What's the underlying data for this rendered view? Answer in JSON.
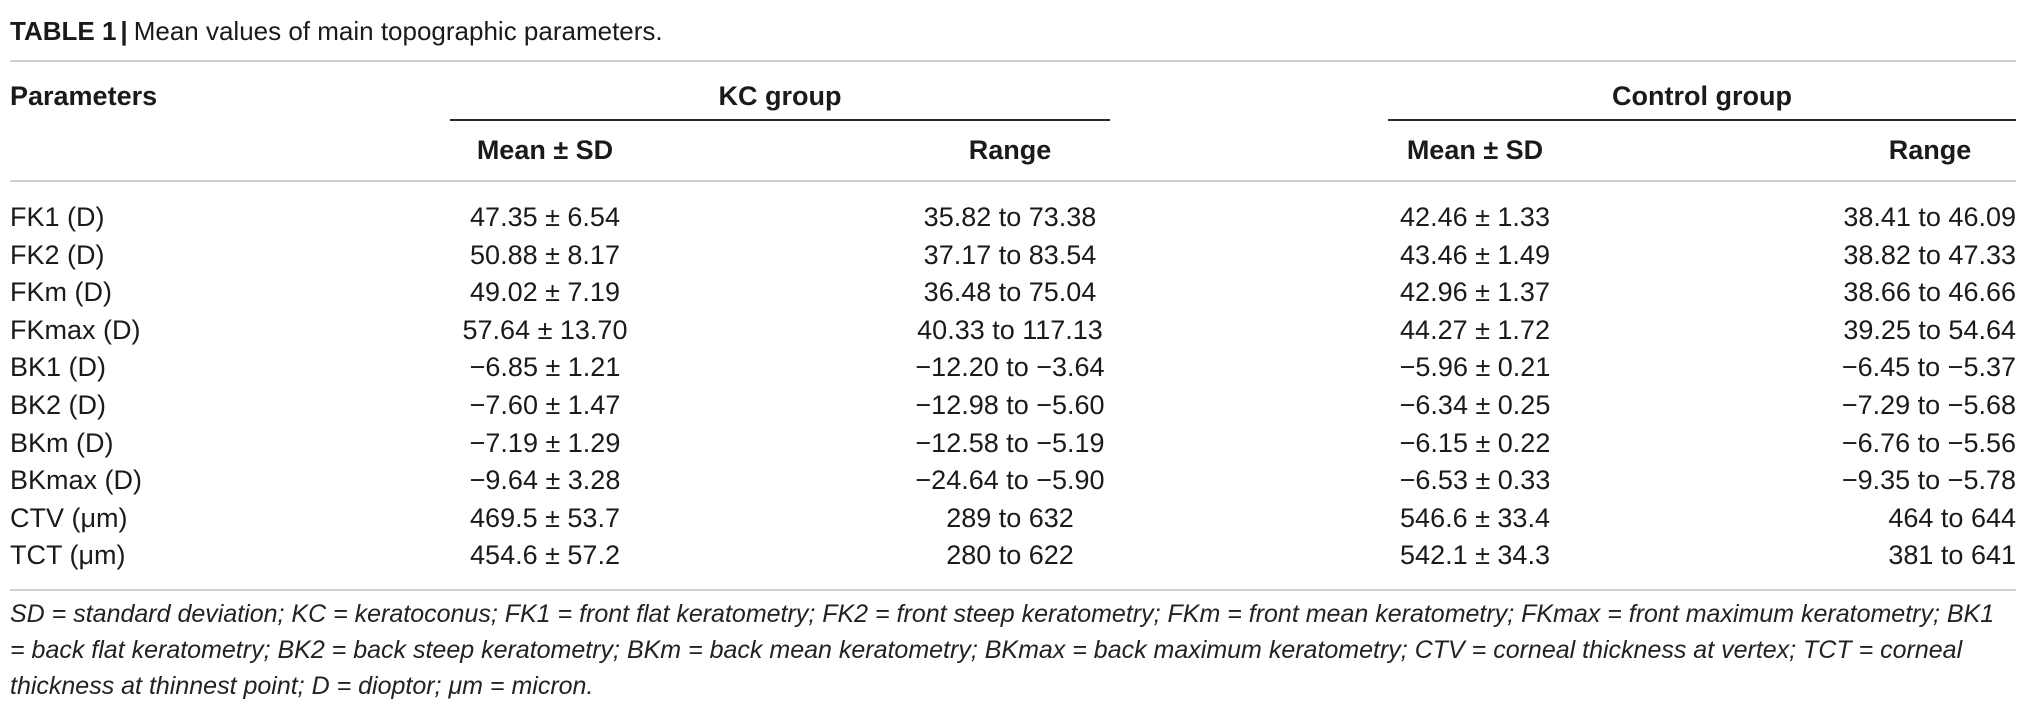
{
  "caption": {
    "label": "TABLE 1",
    "separator": "|",
    "text": "Mean values of main topographic parameters."
  },
  "header": {
    "parameters": "Parameters",
    "kc_group": "KC group",
    "control_group": "Control group",
    "kc_mean": "Mean ± SD",
    "kc_range": "Range",
    "ctrl_mean": "Mean ± SD",
    "ctrl_range": "Range"
  },
  "rows": [
    {
      "param": "FK1 (D)",
      "kc_mean": "47.35 ± 6.54",
      "kc_range": "35.82 to 73.38",
      "ctrl_mean": "42.46 ± 1.33",
      "ctrl_range": "38.41 to 46.09"
    },
    {
      "param": "FK2 (D)",
      "kc_mean": "50.88 ± 8.17",
      "kc_range": "37.17 to 83.54",
      "ctrl_mean": "43.46 ± 1.49",
      "ctrl_range": "38.82 to 47.33"
    },
    {
      "param": "FKm (D)",
      "kc_mean": "49.02 ± 7.19",
      "kc_range": "36.48 to 75.04",
      "ctrl_mean": "42.96 ± 1.37",
      "ctrl_range": "38.66 to 46.66"
    },
    {
      "param": "FKmax (D)",
      "kc_mean": "57.64 ± 13.70",
      "kc_range": "40.33 to 117.13",
      "ctrl_mean": "44.27 ± 1.72",
      "ctrl_range": "39.25 to 54.64"
    },
    {
      "param": "BK1 (D)",
      "kc_mean": "−6.85 ± 1.21",
      "kc_range": "−12.20 to −3.64",
      "ctrl_mean": "−5.96 ± 0.21",
      "ctrl_range": "−6.45 to −5.37"
    },
    {
      "param": "BK2 (D)",
      "kc_mean": "−7.60 ± 1.47",
      "kc_range": "−12.98 to −5.60",
      "ctrl_mean": "−6.34 ± 0.25",
      "ctrl_range": "−7.29 to −5.68"
    },
    {
      "param": "BKm (D)",
      "kc_mean": "−7.19 ± 1.29",
      "kc_range": "−12.58 to −5.19",
      "ctrl_mean": "−6.15 ± 0.22",
      "ctrl_range": "−6.76 to −5.56"
    },
    {
      "param": "BKmax (D)",
      "kc_mean": "−9.64 ± 3.28",
      "kc_range": "−24.64 to −5.90",
      "ctrl_mean": "−6.53 ± 0.33",
      "ctrl_range": "−9.35 to −5.78"
    },
    {
      "param": "CTV (μm)",
      "kc_mean": "469.5 ± 53.7",
      "kc_range": "289 to 632",
      "ctrl_mean": "546.6 ± 33.4",
      "ctrl_range": "464 to 644"
    },
    {
      "param": "TCT (μm)",
      "kc_mean": "454.6 ± 57.2",
      "kc_range": "280 to 622",
      "ctrl_mean": "542.1 ± 34.3",
      "ctrl_range": "381 to 641"
    }
  ],
  "footnote": "SD = standard deviation; KC = keratoconus; FK1 = front flat keratometry; FK2 = front steep keratometry; FKm = front mean keratometry; FKmax = front maximum keratometry; BK1 = back flat keratometry; BK2 = back steep keratometry; BKm = back mean keratometry; BKmax = back maximum keratometry; CTV = corneal thickness at vertex; TCT = corneal thickness at thinnest point; D = dioptor; μm = micron."
}
